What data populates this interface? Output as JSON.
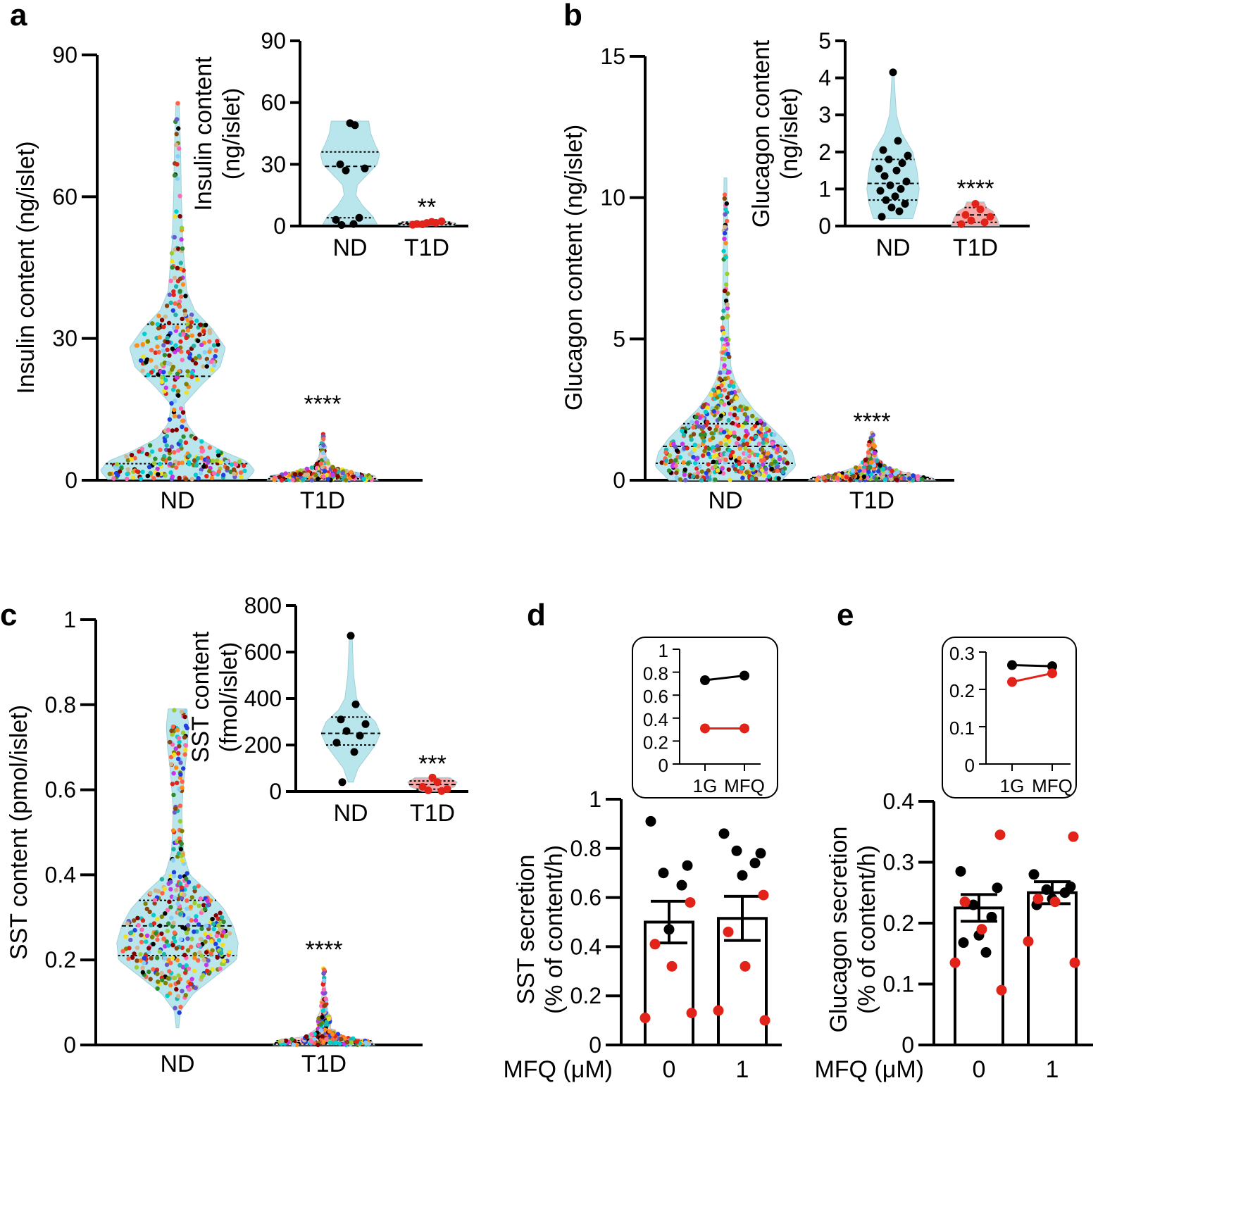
{
  "chart_data": [
    {
      "panel": "a",
      "type": "violin-scatter",
      "ylabel": "Insulin content  (ng/islet)",
      "ylim": [
        0,
        90
      ],
      "yticks": [
        0,
        30,
        60,
        90
      ],
      "categories": [
        "ND",
        "T1D"
      ],
      "significance": [
        "",
        "****"
      ],
      "violins": [
        {
          "name": "ND",
          "min": 0.2,
          "max": 80,
          "q1": 3.5,
          "median": 22,
          "q3": 33,
          "color": "#b9e6ec",
          "profile": [
            [
              0.2,
              0.9
            ],
            [
              2,
              1.0
            ],
            [
              4,
              0.9
            ],
            [
              6,
              0.6
            ],
            [
              9,
              0.25
            ],
            [
              12,
              0.12
            ],
            [
              16,
              0.08
            ],
            [
              20,
              0.3
            ],
            [
              24,
              0.55
            ],
            [
              28,
              0.62
            ],
            [
              32,
              0.45
            ],
            [
              36,
              0.22
            ],
            [
              40,
              0.12
            ],
            [
              50,
              0.07
            ],
            [
              60,
              0.05
            ],
            [
              70,
              0.04
            ],
            [
              80,
              0.02
            ]
          ]
        },
        {
          "name": "T1D",
          "min": 0,
          "max": 10,
          "q1": 0.3,
          "median": 0.8,
          "q3": 1.5,
          "color": "#f7c9c9",
          "profile": [
            [
              0,
              0.75
            ],
            [
              1,
              0.7
            ],
            [
              2,
              0.35
            ],
            [
              3,
              0.12
            ],
            [
              5,
              0.05
            ],
            [
              10,
              0.01
            ]
          ]
        }
      ],
      "inset": {
        "ylabel": "Insulin content\n(ng/islet)",
        "ylim": [
          0,
          90
        ],
        "yticks": [
          0,
          30,
          60,
          90
        ],
        "categories": [
          "ND",
          "T1D"
        ],
        "significance": [
          "",
          "**"
        ],
        "violins": [
          {
            "name": "ND",
            "min": 1,
            "max": 51,
            "q1": 4,
            "median": 29,
            "q3": 36,
            "color": "#b9e6ec",
            "profile": [
              [
                1,
                0.55
              ],
              [
                5,
                0.45
              ],
              [
                10,
                0.25
              ],
              [
                15,
                0.12
              ],
              [
                20,
                0.15
              ],
              [
                25,
                0.35
              ],
              [
                30,
                0.55
              ],
              [
                35,
                0.6
              ],
              [
                40,
                0.5
              ],
              [
                45,
                0.42
              ],
              [
                51,
                0.38
              ]
            ]
          },
          {
            "name": "T1D",
            "min": 0.2,
            "max": 2.5,
            "q1": 0.6,
            "median": 1.2,
            "q3": 1.9,
            "color": "#f7c9c9",
            "profile": [
              [
                0.2,
                0.55
              ],
              [
                1,
                0.6
              ],
              [
                2,
                0.5
              ],
              [
                2.5,
                0.3
              ]
            ]
          }
        ],
        "points": [
          {
            "group": "ND",
            "values": [
              50,
              49,
              30,
              28,
              27,
              4,
              3,
              1,
              0.5
            ],
            "color": "#000000"
          },
          {
            "group": "T1D",
            "values": [
              1.5,
              2,
              1,
              2.3,
              0.8,
              1.6,
              0.6
            ],
            "color": "#e2231a"
          }
        ]
      }
    },
    {
      "panel": "b",
      "type": "violin-scatter",
      "ylabel": "Glucagon content  (ng/islet)",
      "ylim": [
        0,
        15
      ],
      "yticks": [
        0,
        5,
        10,
        15
      ],
      "categories": [
        "ND",
        "T1D"
      ],
      "significance": [
        "",
        "****"
      ],
      "violins": [
        {
          "name": "ND",
          "min": 0,
          "max": 10.7,
          "q1": 0.6,
          "median": 1.2,
          "q3": 2.0,
          "color": "#b9e6ec",
          "profile": [
            [
              0,
              0.8
            ],
            [
              0.5,
              1.0
            ],
            [
              1,
              0.95
            ],
            [
              1.5,
              0.8
            ],
            [
              2,
              0.6
            ],
            [
              2.5,
              0.4
            ],
            [
              3,
              0.25
            ],
            [
              3.5,
              0.14
            ],
            [
              4,
              0.08
            ],
            [
              5,
              0.05
            ],
            [
              6,
              0.04
            ],
            [
              8,
              0.03
            ],
            [
              10.7,
              0.02
            ]
          ]
        },
        {
          "name": "T1D",
          "min": 0,
          "max": 1.7,
          "q1": 0.05,
          "median": 0.1,
          "q3": 0.2,
          "color": "#f7c9c9",
          "profile": [
            [
              0,
              0.9
            ],
            [
              0.1,
              0.85
            ],
            [
              0.25,
              0.5
            ],
            [
              0.5,
              0.2
            ],
            [
              0.8,
              0.08
            ],
            [
              1.7,
              0.02
            ]
          ]
        }
      ],
      "inset": {
        "ylabel": "Glucagon content\n(ng/islet)",
        "ylim": [
          0,
          5
        ],
        "yticks": [
          0,
          1,
          2,
          3,
          4,
          5
        ],
        "categories": [
          "ND",
          "T1D"
        ],
        "significance": [
          "",
          "****"
        ],
        "violins": [
          {
            "name": "ND",
            "min": 0.2,
            "max": 4.2,
            "q1": 0.7,
            "median": 1.15,
            "q3": 1.8,
            "color": "#b9e6ec",
            "profile": [
              [
                0.2,
                0.45
              ],
              [
                0.6,
                0.55
              ],
              [
                1,
                0.6
              ],
              [
                1.5,
                0.55
              ],
              [
                2,
                0.45
              ],
              [
                2.5,
                0.2
              ],
              [
                3,
                0.08
              ],
              [
                3.5,
                0.05
              ],
              [
                4.2,
                0.02
              ]
            ]
          },
          {
            "name": "T1D",
            "min": 0,
            "max": 0.65,
            "q1": 0.1,
            "median": 0.3,
            "q3": 0.5,
            "color": "#f7a9a9",
            "profile": [
              [
                0,
                0.55
              ],
              [
                0.2,
                0.5
              ],
              [
                0.4,
                0.4
              ],
              [
                0.5,
                0.25
              ],
              [
                0.65,
                0.2
              ]
            ]
          }
        ],
        "points": [
          {
            "group": "ND",
            "values": [
              4.15,
              2.3,
              2.05,
              1.9,
              1.8,
              1.7,
              1.55,
              1.5,
              1.35,
              1.2,
              1.1,
              1.0,
              0.95,
              0.8,
              0.7,
              0.6,
              0.5,
              0.4,
              0.25
            ],
            "color": "#000000"
          },
          {
            "group": "T1D",
            "values": [
              0.6,
              0.45,
              0.3,
              0.25,
              0.15,
              0.1,
              0.05
            ],
            "color": "#e2231a"
          }
        ]
      }
    },
    {
      "panel": "c",
      "type": "violin-scatter",
      "ylabel": "SST content  (pmol/islet)",
      "ylim": [
        0,
        1
      ],
      "yticks": [
        0,
        0.2,
        0.4,
        0.6,
        0.8,
        1
      ],
      "ytick_labels": [
        "0",
        "0.2",
        "0.4",
        "0.6",
        "0.8",
        "1"
      ],
      "categories": [
        "ND",
        "T1D"
      ],
      "significance": [
        "",
        "****"
      ],
      "violins": [
        {
          "name": "ND",
          "min": 0.04,
          "max": 0.79,
          "q1": 0.21,
          "median": 0.28,
          "q3": 0.34,
          "color": "#b9e6ec",
          "profile": [
            [
              0.04,
              0.02
            ],
            [
              0.08,
              0.05
            ],
            [
              0.12,
              0.25
            ],
            [
              0.16,
              0.6
            ],
            [
              0.2,
              0.95
            ],
            [
              0.24,
              0.98
            ],
            [
              0.28,
              0.9
            ],
            [
              0.32,
              0.75
            ],
            [
              0.36,
              0.5
            ],
            [
              0.4,
              0.2
            ],
            [
              0.45,
              0.1
            ],
            [
              0.5,
              0.08
            ],
            [
              0.55,
              0.07
            ],
            [
              0.6,
              0.09
            ],
            [
              0.65,
              0.12
            ],
            [
              0.7,
              0.16
            ],
            [
              0.75,
              0.18
            ],
            [
              0.79,
              0.15
            ]
          ]
        },
        {
          "name": "T1D",
          "min": 0,
          "max": 0.18,
          "q1": 0.002,
          "median": 0.005,
          "q3": 0.01,
          "color": "#f7c9c9",
          "profile": [
            [
              0,
              0.8
            ],
            [
              0.01,
              0.75
            ],
            [
              0.02,
              0.3
            ],
            [
              0.04,
              0.1
            ],
            [
              0.06,
              0.12
            ],
            [
              0.08,
              0.06
            ],
            [
              0.12,
              0.03
            ],
            [
              0.18,
              0.01
            ]
          ]
        }
      ],
      "inset": {
        "ylabel": "SST content\n(fmol/islet)",
        "ylim": [
          0,
          800
        ],
        "yticks": [
          0,
          200,
          400,
          600,
          800
        ],
        "categories": [
          "ND",
          "T1D"
        ],
        "significance": [
          "",
          "***"
        ],
        "violins": [
          {
            "name": "ND",
            "min": 40,
            "max": 670,
            "q1": 200,
            "median": 250,
            "q3": 320,
            "color": "#b9e6ec",
            "profile": [
              [
                40,
                0.05
              ],
              [
                100,
                0.15
              ],
              [
                200,
                0.5
              ],
              [
                250,
                0.6
              ],
              [
                300,
                0.5
              ],
              [
                350,
                0.25
              ],
              [
                400,
                0.12
              ],
              [
                500,
                0.06
              ],
              [
                600,
                0.04
              ],
              [
                670,
                0.03
              ]
            ]
          },
          {
            "name": "T1D",
            "min": 0,
            "max": 60,
            "q1": 10,
            "median": 30,
            "q3": 45,
            "color": "#f7a9a9",
            "profile": [
              [
                0,
                0.2
              ],
              [
                20,
                0.45
              ],
              [
                40,
                0.5
              ],
              [
                60,
                0.35
              ]
            ]
          }
        ],
        "points": [
          {
            "group": "ND",
            "values": [
              670,
              375,
              310,
              290,
              260,
              240,
              210,
              170,
              40
            ],
            "color": "#000000"
          },
          {
            "group": "T1D",
            "values": [
              60,
              40,
              20,
              10,
              5,
              2
            ],
            "color": "#e2231a"
          }
        ]
      }
    },
    {
      "panel": "d",
      "type": "bar",
      "ylabel": "SST secretion\n(% of content/h)",
      "ylim": [
        0,
        1
      ],
      "yticks": [
        0,
        0.2,
        0.4,
        0.6,
        0.8,
        1
      ],
      "ytick_labels": [
        "0",
        "0.2",
        "0.4",
        "0.6",
        "0.8",
        "1"
      ],
      "x_prefix": "MFQ (μM)",
      "categories": [
        "0",
        "1"
      ],
      "means": [
        0.5,
        0.515
      ],
      "sem": [
        0.085,
        0.09
      ],
      "points": [
        {
          "group": "0",
          "black": [
            0.91,
            0.73,
            0.7,
            0.65,
            0.47
          ],
          "red": [
            0.58,
            0.41,
            0.32,
            0.11,
            0.13
          ]
        },
        {
          "group": "1",
          "black": [
            0.86,
            0.78,
            0.79,
            0.74,
            0.69
          ],
          "red": [
            0.61,
            0.46,
            0.32,
            0.14,
            0.1
          ]
        }
      ],
      "inset": {
        "type": "line",
        "ylim": [
          0,
          1
        ],
        "yticks": [
          0,
          0.2,
          0.4,
          0.6,
          0.8,
          1
        ],
        "ytick_labels": [
          "0",
          "0.2",
          "0.4",
          "0.6",
          "0.8",
          "1"
        ],
        "categories": [
          "1G",
          "MFQ"
        ],
        "series": [
          {
            "name": "black",
            "values": [
              0.73,
              0.77
            ],
            "color": "#000000"
          },
          {
            "name": "red",
            "values": [
              0.31,
              0.31
            ],
            "color": "#e2231a"
          }
        ]
      }
    },
    {
      "panel": "e",
      "type": "bar",
      "ylabel": "Glucagon secretion\n(% of content/h)",
      "ylim": [
        0,
        0.4
      ],
      "yticks": [
        0,
        0.1,
        0.2,
        0.3,
        0.4
      ],
      "ytick_labels": [
        "0",
        "0.1",
        "0.2",
        "0.3",
        "0.4"
      ],
      "x_prefix": "MFQ (μM)",
      "categories": [
        "0",
        "1"
      ],
      "means": [
        0.225,
        0.25
      ],
      "sem": [
        0.022,
        0.018
      ],
      "points": [
        {
          "group": "0",
          "black": [
            0.285,
            0.258,
            0.23,
            0.21,
            0.18,
            0.168,
            0.152
          ],
          "red": [
            0.345,
            0.235,
            0.19,
            0.135,
            0.09
          ]
        },
        {
          "group": "1",
          "black": [
            0.28,
            0.26,
            0.255,
            0.25,
            0.24,
            0.23
          ],
          "red": [
            0.342,
            0.24,
            0.235,
            0.17,
            0.135
          ]
        }
      ],
      "inset": {
        "type": "line",
        "ylim": [
          0,
          0.3
        ],
        "yticks": [
          0,
          0.1,
          0.2,
          0.3
        ],
        "ytick_labels": [
          "0",
          "0.1",
          "0.2",
          "0.3"
        ],
        "categories": [
          "1G",
          "MFQ"
        ],
        "series": [
          {
            "name": "black",
            "values": [
              0.265,
              0.262
            ],
            "color": "#000000"
          },
          {
            "name": "red",
            "values": [
              0.22,
              0.243
            ],
            "color": "#e2231a"
          }
        ]
      }
    }
  ]
}
